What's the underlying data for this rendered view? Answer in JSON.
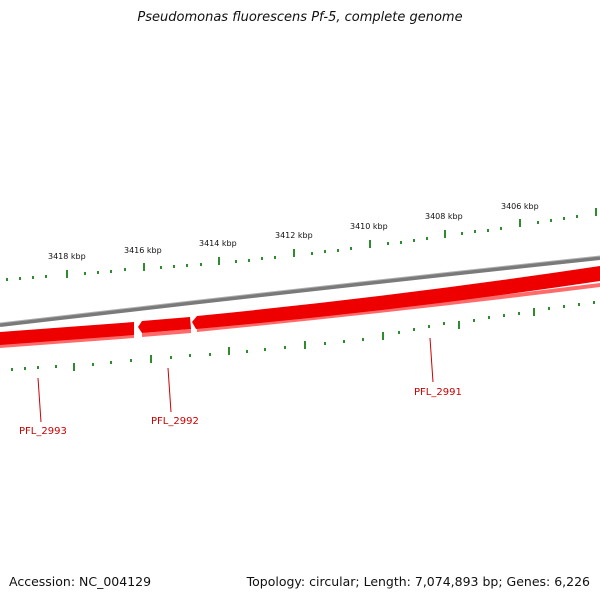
{
  "title": "Pseudomonas fluorescens Pf-5, complete genome",
  "accession": "Accession: NC_004129",
  "summary": "Topology: circular; Length: 7,074,893 bp; Genes: 6,226",
  "colors": {
    "backbone": "#808080",
    "gene_fill": "#ee0000",
    "gene_shadow": "#ff6666",
    "tick": "#2e8b2e",
    "gene_label": "#cc0000"
  },
  "kbp_ticks": [
    {
      "label": "3418 kbp",
      "kbp": 3418
    },
    {
      "label": "3416 kbp",
      "kbp": 3416
    },
    {
      "label": "3414 kbp",
      "kbp": 3414
    },
    {
      "label": "3412 kbp",
      "kbp": 3412
    },
    {
      "label": "3410 kbp",
      "kbp": 3410
    },
    {
      "label": "3408 kbp",
      "kbp": 3408
    },
    {
      "label": "3406 kbp",
      "kbp": 3406
    }
  ],
  "genes": [
    {
      "name": "PFL_2993",
      "strand": "-"
    },
    {
      "name": "PFL_2992",
      "strand": "-"
    },
    {
      "name": "PFL_2991",
      "strand": "-"
    }
  ]
}
